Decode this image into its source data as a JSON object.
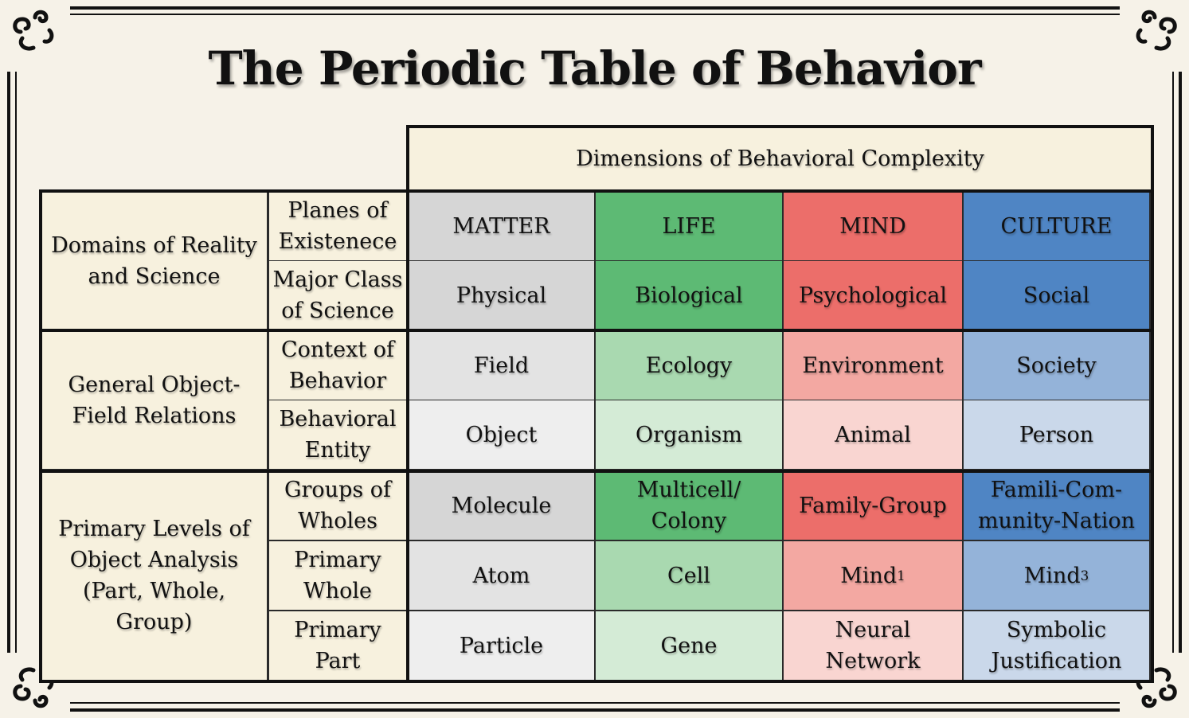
{
  "title": "The Periodic Table of Behavior",
  "header": "Dimensions of Behavioral Complexity",
  "columns": [
    "MATTER",
    "LIFE",
    "MIND",
    "CULTURE"
  ],
  "colors": {
    "matter": [
      "#d6d6d6",
      "#e3e3e3",
      "#eeeeee"
    ],
    "life": [
      "#5dba74",
      "#a9d9b0",
      "#d4ebd6"
    ],
    "mind": [
      "#ec6e6a",
      "#f3a8a2",
      "#f9d5d1"
    ],
    "culture": [
      "#4f85c4",
      "#94b3d9",
      "#cad8ea"
    ],
    "cream": "#f7f1de",
    "frame": "#111111"
  },
  "groups": [
    {
      "label": "Domains of Reality and Science"
    },
    {
      "label": "General Object-Field Relations"
    },
    {
      "label": "Primary Levels of Object Analysis (Part, Whole, Group)"
    }
  ],
  "rows": [
    {
      "label": "Planes of Existenece",
      "cells": [
        "MATTER",
        "LIFE",
        "MIND",
        "CULTURE"
      ]
    },
    {
      "label": "Major Class of Science",
      "cells": [
        "Physical",
        "Biological",
        "Psychological",
        "Social"
      ]
    },
    {
      "label": "Context of Behavior",
      "cells": [
        "Field",
        "Ecology",
        "Environment",
        "Society"
      ]
    },
    {
      "label": "Behavioral Entity",
      "cells": [
        "Object",
        "Organism",
        "Animal",
        "Person"
      ]
    },
    {
      "label": "Groups of Wholes",
      "cells": [
        "Molecule",
        "Multicell/ Colony",
        "Family-Group",
        "Famili-Com- munity-Nation"
      ]
    },
    {
      "label": "Primary Whole",
      "cells": [
        "Atom",
        "Cell",
        "Mind",
        "Mind"
      ],
      "superscripts": [
        "",
        "",
        "1",
        "3"
      ]
    },
    {
      "label": "Primary Part",
      "cells": [
        "Particle",
        "Gene",
        "Neural Network",
        "Symbolic Justification"
      ]
    }
  ]
}
